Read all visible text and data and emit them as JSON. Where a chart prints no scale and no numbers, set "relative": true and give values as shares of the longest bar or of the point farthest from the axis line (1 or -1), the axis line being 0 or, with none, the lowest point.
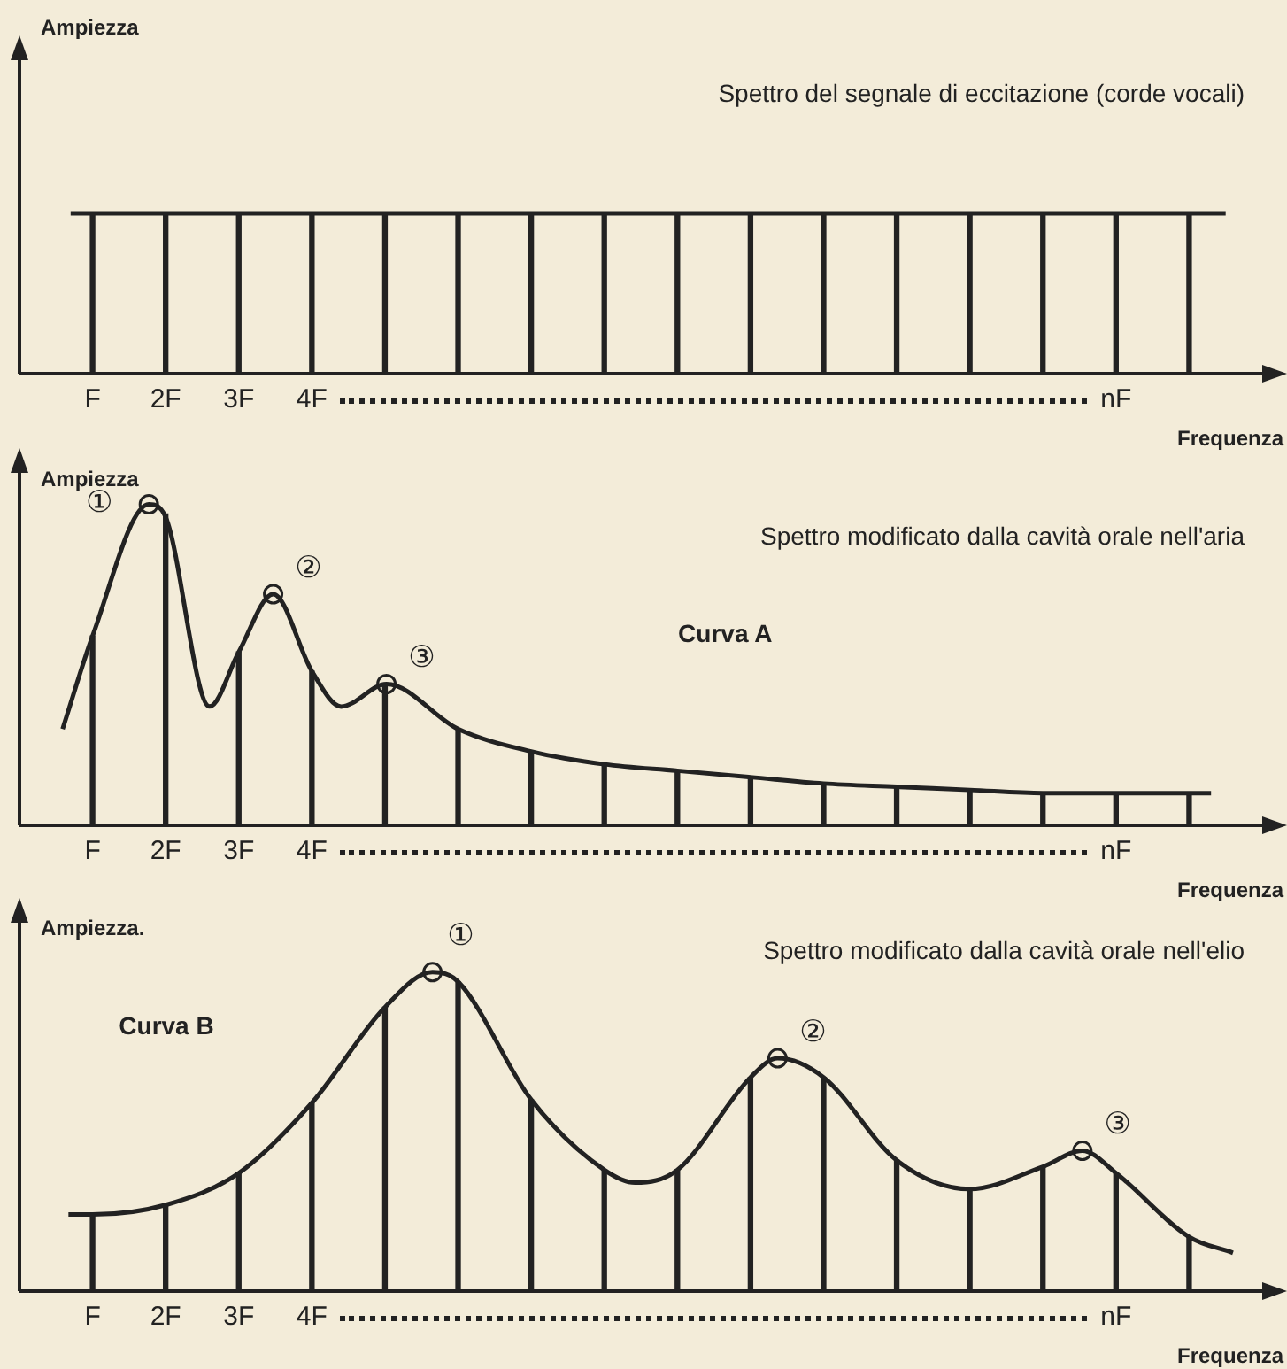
{
  "chart_data": [
    {
      "type": "bar",
      "title": "Spettro del segnale di eccitazione (corde vocali)",
      "ylabel": "Ampiezza",
      "xlabel": "Frequenza",
      "relative": true,
      "x": [
        1,
        2,
        3,
        4,
        5,
        6,
        7,
        8,
        9,
        10,
        11,
        12,
        13,
        14,
        15,
        16
      ],
      "xlim": [
        0,
        17
      ],
      "xticks": [
        {
          "value": 1,
          "label": "F"
        },
        {
          "value": 2,
          "label": "2F"
        },
        {
          "value": 3,
          "label": "3F"
        },
        {
          "value": 4,
          "label": "4F"
        },
        {
          "value": 15,
          "label": "nF"
        }
      ],
      "tick_labels": "x",
      "legend": false,
      "series": [
        {
          "color": "#222222",
          "values": [
            1,
            1,
            1,
            1,
            1,
            1,
            1,
            1,
            1,
            1,
            1,
            1,
            1,
            1,
            1,
            1
          ]
        },
        {
          "type": "line",
          "color": "#222222",
          "x": [
            0.7,
            16.5
          ],
          "values": [
            1,
            1
          ]
        }
      ]
    },
    {
      "type": "bar",
      "title": "Spettro modificato dalla cavità orale nell'aria",
      "ylabel": "Ampiezza",
      "xlabel": "Frequenza",
      "relative": true,
      "x": [
        1,
        2,
        3,
        4,
        5,
        6,
        7,
        8,
        9,
        10,
        11,
        12,
        13,
        14,
        15,
        16
      ],
      "xlim": [
        0,
        17
      ],
      "xticks": [
        {
          "value": 1,
          "label": "F"
        },
        {
          "value": 2,
          "label": "2F"
        },
        {
          "value": 3,
          "label": "3F"
        },
        {
          "value": 4,
          "label": "4F"
        },
        {
          "value": 15,
          "label": "nF"
        }
      ],
      "tick_labels": "x",
      "legend": false,
      "annotations": [
        "Curva A",
        {
          "text": "①",
          "x": 1.77,
          "y": 1
        },
        {
          "text": "②",
          "x": 3.47,
          "y": 0.72
        },
        {
          "text": "③",
          "x": 5.02,
          "y": 0.44
        }
      ],
      "series": [
        {
          "color": "#222222",
          "values": [
            0.59,
            0.97,
            0.54,
            0.48,
            0.44,
            0.3,
            0.23,
            0.19,
            0.17,
            0.15,
            0.13,
            0.12,
            0.11,
            0.1,
            0.1,
            0.1
          ]
        },
        {
          "type": "line",
          "color": "#222222",
          "x": [
            0.59,
            1,
            1.77,
            2,
            2.6,
            3,
            3.47,
            4,
            4.4,
            5.02,
            6,
            7,
            8,
            9,
            10,
            11,
            12,
            13,
            14,
            15,
            16,
            16.3
          ],
          "values": [
            0.3,
            0.59,
            1,
            0.96,
            0.37,
            0.54,
            0.72,
            0.48,
            0.37,
            0.44,
            0.3,
            0.23,
            0.19,
            0.17,
            0.15,
            0.13,
            0.12,
            0.11,
            0.1,
            0.1,
            0.1,
            0.1
          ]
        },
        {
          "type": "scatter",
          "color": "#222222",
          "marker": "circle",
          "x": [
            1.77,
            3.47,
            5.02
          ],
          "values": [
            1,
            0.72,
            0.44
          ]
        }
      ]
    },
    {
      "type": "bar",
      "title": "Spettro modificato dalla cavità orale nell'elio",
      "ylabel": "Ampiezza.",
      "xlabel": "Frequenza",
      "relative": true,
      "x": [
        1,
        2,
        3,
        4,
        5,
        6,
        7,
        8,
        9,
        10,
        11,
        12,
        13,
        14,
        15,
        16
      ],
      "xlim": [
        0,
        17
      ],
      "xticks": [
        {
          "value": 1,
          "label": "F"
        },
        {
          "value": 2,
          "label": "2F"
        },
        {
          "value": 3,
          "label": "3F"
        },
        {
          "value": 4,
          "label": "4F"
        },
        {
          "value": 15,
          "label": "nF"
        }
      ],
      "tick_labels": "x",
      "legend": false,
      "annotations": [
        "Curva B",
        {
          "text": "①",
          "x": 5.65,
          "y": 1
        },
        {
          "text": "②",
          "x": 10.37,
          "y": 0.73
        },
        {
          "text": "③",
          "x": 14.54,
          "y": 0.44
        }
      ],
      "series": [
        {
          "color": "#222222",
          "values": [
            0.24,
            0.27,
            0.37,
            0.59,
            0.89,
            0.97,
            0.6,
            0.38,
            0.38,
            0.67,
            0.67,
            0.41,
            0.32,
            0.39,
            0.37,
            0.17
          ]
        },
        {
          "type": "line",
          "color": "#222222",
          "x": [
            0.67,
            1,
            2,
            3,
            4,
            5,
            5.65,
            6,
            7,
            8,
            8.42,
            9,
            10,
            10.37,
            11,
            12,
            13,
            14,
            14.54,
            15,
            16,
            16.6
          ],
          "values": [
            0.24,
            0.24,
            0.27,
            0.37,
            0.59,
            0.89,
            1,
            0.97,
            0.6,
            0.38,
            0.34,
            0.38,
            0.67,
            0.73,
            0.67,
            0.41,
            0.32,
            0.39,
            0.44,
            0.37,
            0.17,
            0.12
          ]
        },
        {
          "type": "scatter",
          "color": "#222222",
          "marker": "circle",
          "x": [
            5.65,
            10.37,
            14.54
          ],
          "values": [
            1,
            0.73,
            0.44
          ]
        }
      ]
    }
  ]
}
